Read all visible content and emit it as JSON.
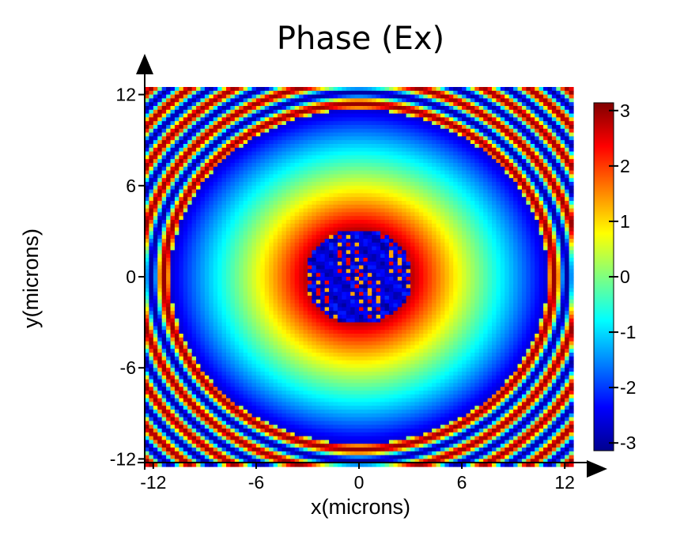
{
  "chart_data": {
    "type": "heatmap",
    "title": "Phase (Ex)",
    "xlabel": "x(microns)",
    "ylabel": "y(microns)",
    "xlim": [
      -12.5,
      12.5
    ],
    "ylim": [
      -12.5,
      12.5
    ],
    "x_ticks": [
      -12,
      -6,
      0,
      6,
      12
    ],
    "y_ticks": [
      12,
      6,
      0,
      -6,
      -12
    ],
    "colorbar": {
      "min": -3.14,
      "max": 3.14,
      "ticks": [
        3,
        2,
        1,
        0,
        -1,
        -2,
        -3
      ],
      "colormap": "jet"
    },
    "field": {
      "description_quantity": "phase",
      "center_value": -2.6,
      "peak_value": 2.8,
      "ring_min_value": -2.8,
      "peak_radius": 4.0,
      "ring_radius": 11.0,
      "grid_resolution": 100
    }
  },
  "colors": {
    "jet_stops": [
      "#00008f",
      "#0000ff",
      "#00ffff",
      "#ffff00",
      "#ff0000",
      "#800000"
    ],
    "axis": "#000000",
    "background": "#ffffff"
  }
}
